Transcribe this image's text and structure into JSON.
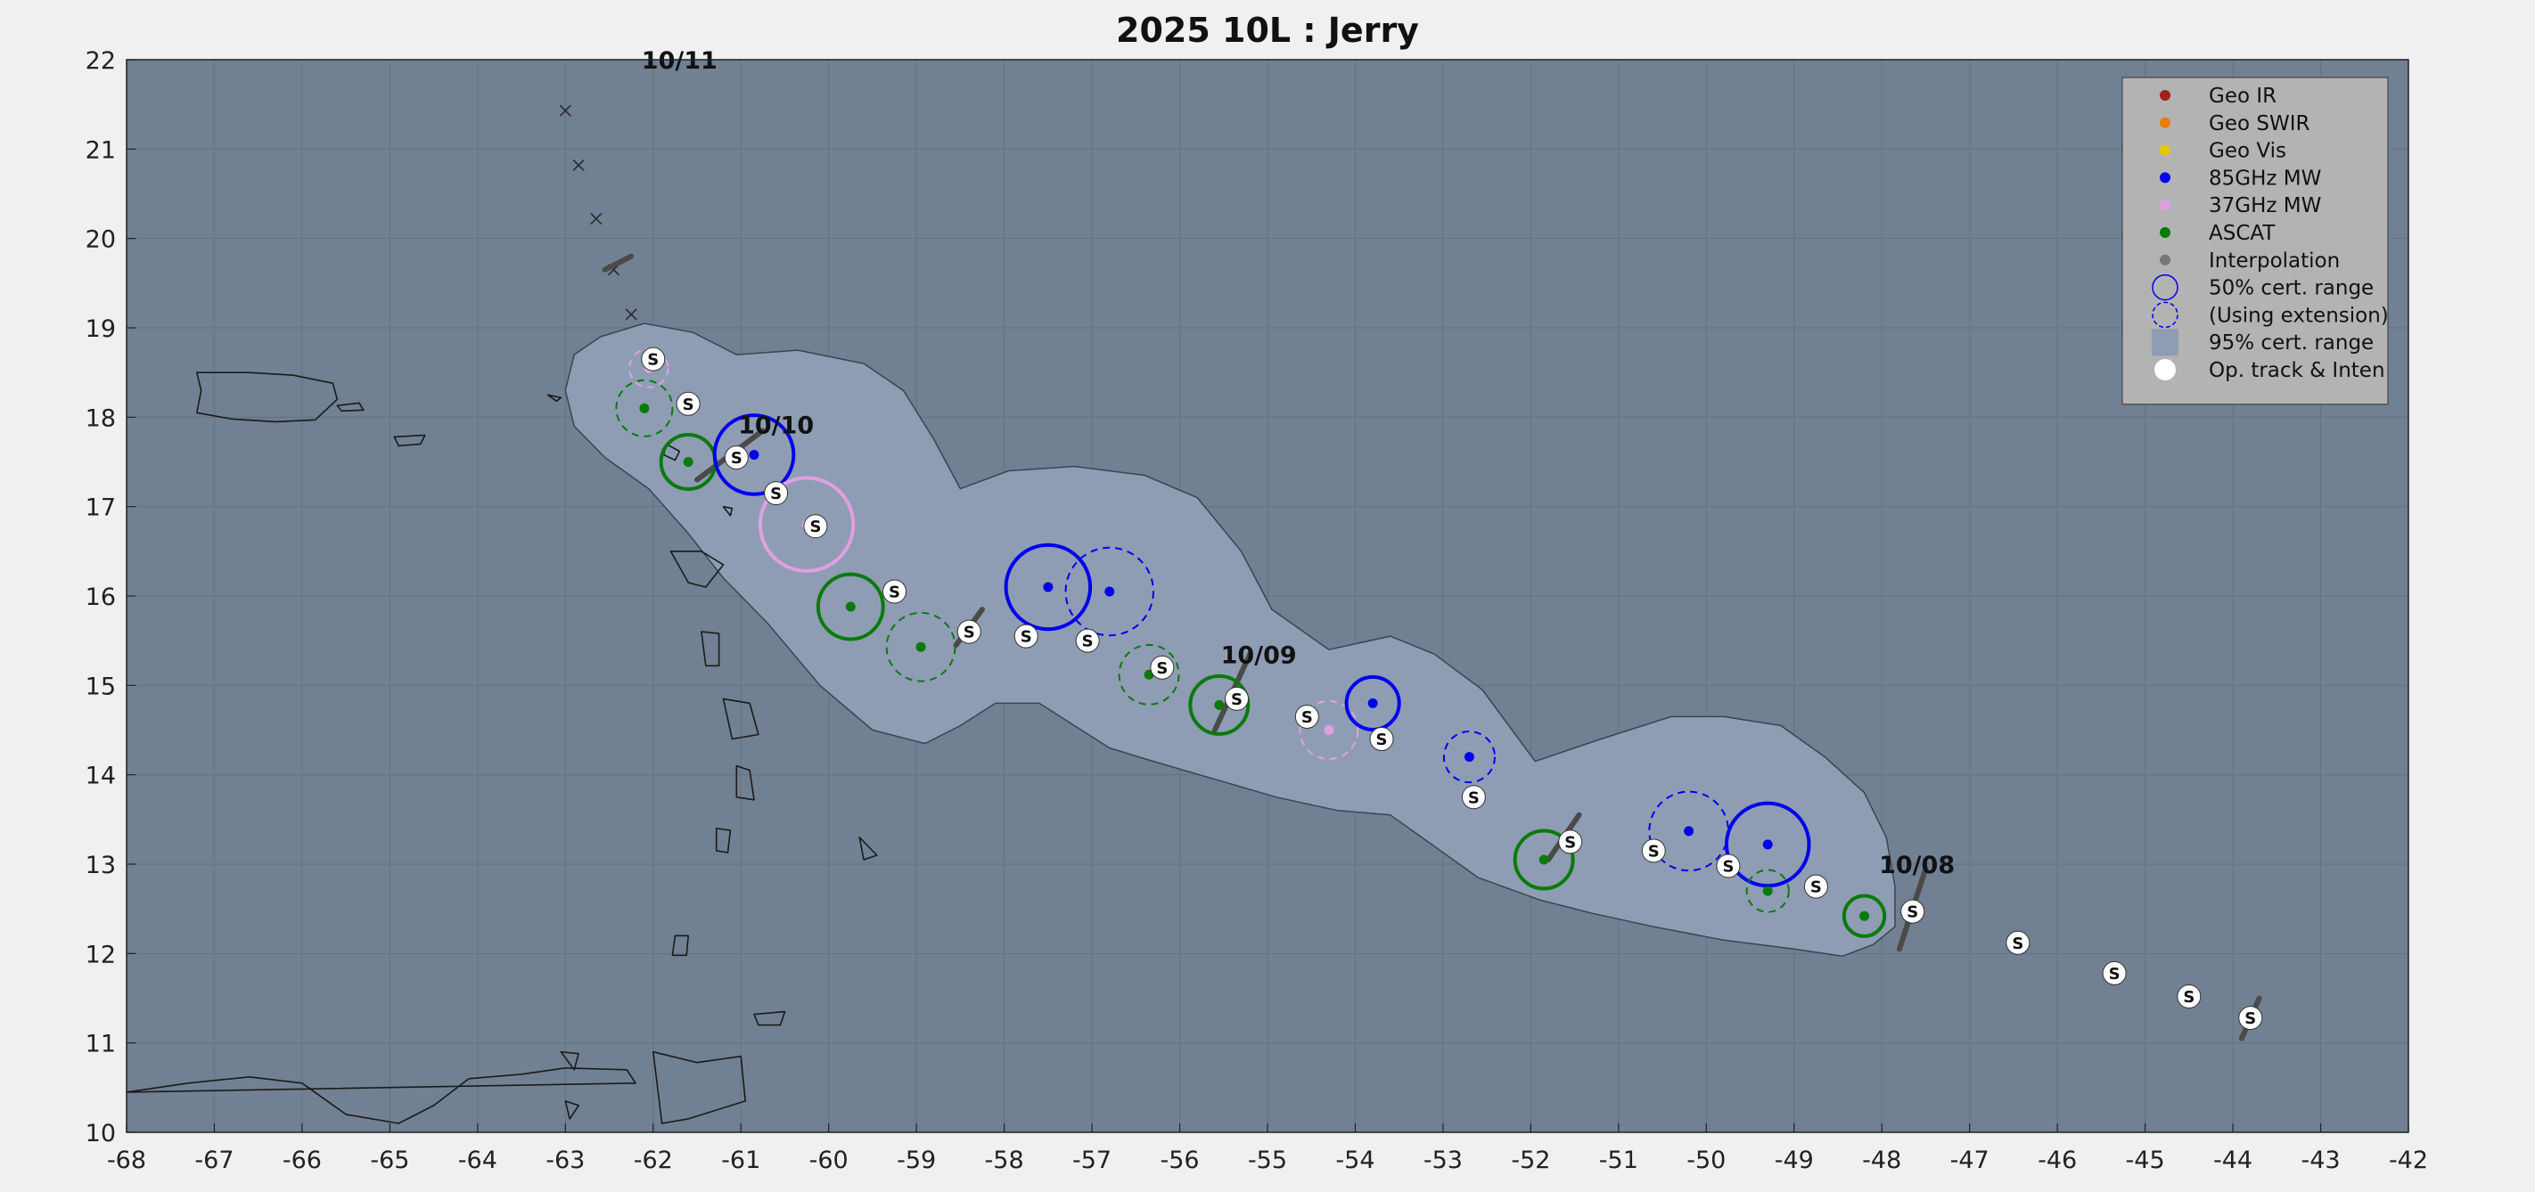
{
  "title": "2025  10L :  Jerry",
  "colors": {
    "background": "#f0f0f0",
    "ocean": "#718093",
    "cone": "#8e9db3",
    "geo_ir": "#a02020",
    "geo_swir": "#e67e00",
    "geo_vis": "#e6c800",
    "mw85": "#0000ee",
    "mw37": "#e0a0e0",
    "ascat": "#0a7a0a",
    "interp": "#777777",
    "legend_bg": "#b3b3b3"
  },
  "legend": [
    {
      "label": "Geo IR",
      "type": "dot",
      "color": "#a02020"
    },
    {
      "label": "Geo SWIR",
      "type": "dot",
      "color": "#e67e00"
    },
    {
      "label": "Geo Vis",
      "type": "dot",
      "color": "#e6c800"
    },
    {
      "label": "85GHz MW",
      "type": "dot",
      "color": "#0000ee"
    },
    {
      "label": "37GHz MW",
      "type": "dot",
      "color": "#e0a0e0"
    },
    {
      "label": "ASCAT",
      "type": "dot",
      "color": "#0a7a0a"
    },
    {
      "label": "Interpolation",
      "type": "dot",
      "color": "#777777"
    },
    {
      "label": "50% cert. range",
      "type": "circle-solid",
      "color": "#0000ee"
    },
    {
      "label": "(Using extension)",
      "type": "circle-dashed",
      "color": "#0000ee"
    },
    {
      "label": "95% cert. range",
      "type": "square",
      "color": "#8e9db3"
    },
    {
      "label": "Op. track & Inten",
      "type": "white-dot",
      "color": "#ffffff"
    }
  ],
  "chart_data": {
    "type": "scatter",
    "title": "2025  10L :  Jerry",
    "xlabel": "",
    "ylabel": "",
    "xlim": [
      -68,
      -42
    ],
    "ylim": [
      10,
      22
    ],
    "xticks": [
      -68,
      -67,
      -66,
      -65,
      -64,
      -63,
      -62,
      -61,
      -60,
      -59,
      -58,
      -57,
      -56,
      -55,
      -54,
      -53,
      -52,
      -51,
      -50,
      -49,
      -48,
      -47,
      -46,
      -45,
      -44,
      -43,
      -42
    ],
    "yticks": [
      10,
      11,
      12,
      13,
      14,
      15,
      16,
      17,
      18,
      19,
      20,
      21,
      22
    ],
    "grid": true,
    "legend_position": "top-right",
    "date_labels": [
      {
        "text": "10/11",
        "lon": -61.7,
        "lat": 21.9
      },
      {
        "text": "10/10",
        "lon": -60.6,
        "lat": 17.82
      },
      {
        "text": "10/09",
        "lon": -55.1,
        "lat": 15.25
      },
      {
        "text": "10/08",
        "lon": -47.6,
        "lat": 12.9
      }
    ],
    "forecast_marks": [
      {
        "lon": -63.0,
        "lat": 21.43
      },
      {
        "lon": -62.85,
        "lat": 20.82
      },
      {
        "lon": -62.65,
        "lat": 20.22
      },
      {
        "lon": -62.45,
        "lat": 19.65
      },
      {
        "lon": -62.25,
        "lat": 19.15
      }
    ],
    "op_track": [
      {
        "lon": -62.0,
        "lat": 18.65,
        "label": "S"
      },
      {
        "lon": -61.6,
        "lat": 18.15,
        "label": "S"
      },
      {
        "lon": -61.05,
        "lat": 17.55,
        "label": "S"
      },
      {
        "lon": -60.6,
        "lat": 17.15,
        "label": "S"
      },
      {
        "lon": -60.15,
        "lat": 16.78,
        "label": "S"
      },
      {
        "lon": -59.25,
        "lat": 16.05,
        "label": "S"
      },
      {
        "lon": -58.4,
        "lat": 15.6,
        "label": "S"
      },
      {
        "lon": -57.75,
        "lat": 15.55,
        "label": "S"
      },
      {
        "lon": -57.05,
        "lat": 15.5,
        "label": "S"
      },
      {
        "lon": -56.2,
        "lat": 15.2,
        "label": "S"
      },
      {
        "lon": -55.35,
        "lat": 14.85,
        "label": "S"
      },
      {
        "lon": -54.55,
        "lat": 14.65,
        "label": "S"
      },
      {
        "lon": -53.7,
        "lat": 14.4,
        "label": "S"
      },
      {
        "lon": -52.65,
        "lat": 13.75,
        "label": "S"
      },
      {
        "lon": -51.55,
        "lat": 13.25,
        "label": "S"
      },
      {
        "lon": -50.6,
        "lat": 13.15,
        "label": "S"
      },
      {
        "lon": -49.75,
        "lat": 12.98,
        "label": "S"
      },
      {
        "lon": -48.75,
        "lat": 12.75,
        "label": "S"
      },
      {
        "lon": -47.65,
        "lat": 12.47,
        "label": "S"
      },
      {
        "lon": -46.45,
        "lat": 12.12,
        "label": "S"
      },
      {
        "lon": -45.35,
        "lat": 11.78,
        "label": "S"
      },
      {
        "lon": -44.5,
        "lat": 11.52,
        "label": "S"
      },
      {
        "lon": -43.8,
        "lat": 11.28,
        "label": "S"
      }
    ],
    "motion_segments": [
      {
        "lon1": -61.5,
        "lat1": 17.3,
        "lon2": -60.75,
        "lat2": 17.85
      },
      {
        "lon1": -58.55,
        "lat1": 15.45,
        "lon2": -58.25,
        "lat2": 15.85
      },
      {
        "lon1": -55.6,
        "lat1": 14.5,
        "lon2": -55.2,
        "lat2": 15.35
      },
      {
        "lon1": -51.8,
        "lat1": 13.05,
        "lon2": -51.45,
        "lat2": 13.55
      },
      {
        "lon1": -47.8,
        "lat1": 12.05,
        "lon2": -47.5,
        "lat2": 12.95
      },
      {
        "lon1": -43.9,
        "lat1": 11.05,
        "lon2": -43.7,
        "lat2": 11.5
      },
      {
        "lon1": -62.55,
        "lat1": 19.65,
        "lon2": -62.25,
        "lat2": 19.8
      }
    ],
    "fixes": [
      {
        "sensor": "37GHz MW",
        "lon": -62.05,
        "lat": 18.55,
        "radius_deg": 0.22,
        "extension": true
      },
      {
        "sensor": "ASCAT",
        "lon": -62.1,
        "lat": 18.1,
        "radius_deg": 0.32,
        "extension": true
      },
      {
        "sensor": "ASCAT",
        "lon": -61.6,
        "lat": 17.5,
        "radius_deg": 0.31,
        "extension": false
      },
      {
        "sensor": "85GHz MW",
        "lon": -60.85,
        "lat": 17.58,
        "radius_deg": 0.45,
        "extension": false
      },
      {
        "sensor": "37GHz MW",
        "lon": -60.25,
        "lat": 16.8,
        "radius_deg": 0.53,
        "extension": false
      },
      {
        "sensor": "ASCAT",
        "lon": -59.75,
        "lat": 15.88,
        "radius_deg": 0.37,
        "extension": false
      },
      {
        "sensor": "ASCAT",
        "lon": -58.95,
        "lat": 15.43,
        "radius_deg": 0.39,
        "extension": true
      },
      {
        "sensor": "85GHz MW",
        "lon": -57.5,
        "lat": 16.1,
        "radius_deg": 0.48,
        "extension": false
      },
      {
        "sensor": "85GHz MW",
        "lon": -56.8,
        "lat": 16.05,
        "radius_deg": 0.5,
        "extension": true
      },
      {
        "sensor": "ASCAT",
        "lon": -56.35,
        "lat": 15.12,
        "radius_deg": 0.34,
        "extension": true
      },
      {
        "sensor": "ASCAT",
        "lon": -55.55,
        "lat": 14.78,
        "radius_deg": 0.33,
        "extension": false
      },
      {
        "sensor": "37GHz MW",
        "lon": -54.3,
        "lat": 14.5,
        "radius_deg": 0.33,
        "extension": true
      },
      {
        "sensor": "85GHz MW",
        "lon": -53.8,
        "lat": 14.8,
        "radius_deg": 0.3,
        "extension": false
      },
      {
        "sensor": "85GHz MW",
        "lon": -52.7,
        "lat": 14.2,
        "radius_deg": 0.29,
        "extension": true
      },
      {
        "sensor": "ASCAT",
        "lon": -51.85,
        "lat": 13.05,
        "radius_deg": 0.33,
        "extension": false
      },
      {
        "sensor": "85GHz MW",
        "lon": -50.2,
        "lat": 13.37,
        "radius_deg": 0.45,
        "extension": true
      },
      {
        "sensor": "85GHz MW",
        "lon": -49.3,
        "lat": 13.22,
        "radius_deg": 0.47,
        "extension": false
      },
      {
        "sensor": "ASCAT",
        "lon": -49.3,
        "lat": 12.7,
        "radius_deg": 0.24,
        "extension": true
      },
      {
        "sensor": "ASCAT",
        "lon": -48.2,
        "lat": 12.42,
        "radius_deg": 0.23,
        "extension": false
      }
    ],
    "cone_95_polygon": [
      [
        -62.6,
        18.9
      ],
      [
        -62.1,
        19.05
      ],
      [
        -61.55,
        18.95
      ],
      [
        -61.05,
        18.7
      ],
      [
        -60.35,
        18.75
      ],
      [
        -59.6,
        18.6
      ],
      [
        -59.15,
        18.3
      ],
      [
        -58.8,
        17.75
      ],
      [
        -58.5,
        17.2
      ],
      [
        -57.95,
        17.4
      ],
      [
        -57.2,
        17.45
      ],
      [
        -56.4,
        17.35
      ],
      [
        -55.8,
        17.1
      ],
      [
        -55.3,
        16.5
      ],
      [
        -54.95,
        15.85
      ],
      [
        -54.3,
        15.4
      ],
      [
        -53.6,
        15.55
      ],
      [
        -53.1,
        15.35
      ],
      [
        -52.55,
        14.95
      ],
      [
        -51.95,
        14.15
      ],
      [
        -51.2,
        14.4
      ],
      [
        -50.4,
        14.65
      ],
      [
        -49.8,
        14.65
      ],
      [
        -49.15,
        14.55
      ],
      [
        -48.65,
        14.2
      ],
      [
        -48.2,
        13.8
      ],
      [
        -47.95,
        13.3
      ],
      [
        -47.85,
        12.75
      ],
      [
        -47.85,
        12.3
      ],
      [
        -48.1,
        12.1
      ],
      [
        -48.45,
        11.97
      ],
      [
        -49.0,
        12.05
      ],
      [
        -49.8,
        12.15
      ],
      [
        -50.6,
        12.3
      ],
      [
        -51.3,
        12.45
      ],
      [
        -51.9,
        12.6
      ],
      [
        -52.6,
        12.85
      ],
      [
        -53.1,
        13.2
      ],
      [
        -53.6,
        13.55
      ],
      [
        -54.2,
        13.6
      ],
      [
        -54.9,
        13.75
      ],
      [
        -55.6,
        13.95
      ],
      [
        -56.3,
        14.15
      ],
      [
        -56.8,
        14.3
      ],
      [
        -57.2,
        14.55
      ],
      [
        -57.6,
        14.8
      ],
      [
        -58.1,
        14.8
      ],
      [
        -58.5,
        14.55
      ],
      [
        -58.9,
        14.35
      ],
      [
        -59.5,
        14.5
      ],
      [
        -60.1,
        15.0
      ],
      [
        -60.7,
        15.7
      ],
      [
        -61.2,
        16.2
      ],
      [
        -61.6,
        16.7
      ],
      [
        -62.05,
        17.2
      ],
      [
        -62.55,
        17.55
      ],
      [
        -62.9,
        17.9
      ],
      [
        -63.0,
        18.3
      ],
      [
        -62.9,
        18.7
      ]
    ],
    "coastlines": [
      [
        [
          -67.2,
          18.5
        ],
        [
          -66.6,
          18.5
        ],
        [
          -66.1,
          18.47
        ],
        [
          -65.65,
          18.38
        ],
        [
          -65.6,
          18.2
        ],
        [
          -65.85,
          17.97
        ],
        [
          -66.3,
          17.95
        ],
        [
          -66.8,
          17.98
        ],
        [
          -67.2,
          18.05
        ],
        [
          -67.15,
          18.3
        ]
      ],
      [
        [
          -65.6,
          18.13
        ],
        [
          -65.35,
          18.16
        ],
        [
          -65.3,
          18.08
        ],
        [
          -65.55,
          18.07
        ]
      ],
      [
        [
          -64.95,
          17.78
        ],
        [
          -64.6,
          17.8
        ],
        [
          -64.65,
          17.7
        ],
        [
          -64.9,
          17.68
        ]
      ],
      [
        [
          -63.2,
          18.25
        ],
        [
          -63.05,
          18.22
        ],
        [
          -63.1,
          18.18
        ]
      ],
      [
        [
          -61.85,
          17.7
        ],
        [
          -61.7,
          17.62
        ],
        [
          -61.75,
          17.52
        ],
        [
          -61.88,
          17.58
        ]
      ],
      [
        [
          -61.2,
          17.0
        ],
        [
          -61.1,
          16.98
        ],
        [
          -61.12,
          16.9
        ]
      ],
      [
        [
          -61.8,
          16.5
        ],
        [
          -61.45,
          16.5
        ],
        [
          -61.2,
          16.35
        ],
        [
          -61.4,
          16.1
        ],
        [
          -61.6,
          16.15
        ]
      ],
      [
        [
          -61.45,
          15.6
        ],
        [
          -61.25,
          15.58
        ],
        [
          -61.25,
          15.22
        ],
        [
          -61.4,
          15.22
        ]
      ],
      [
        [
          -61.2,
          14.85
        ],
        [
          -60.9,
          14.8
        ],
        [
          -60.8,
          14.45
        ],
        [
          -61.1,
          14.4
        ]
      ],
      [
        [
          -61.05,
          14.1
        ],
        [
          -60.9,
          14.05
        ],
        [
          -60.85,
          13.72
        ],
        [
          -61.05,
          13.75
        ]
      ],
      [
        [
          -61.28,
          13.4
        ],
        [
          -61.12,
          13.38
        ],
        [
          -61.15,
          13.13
        ],
        [
          -61.28,
          13.15
        ]
      ],
      [
        [
          -59.65,
          13.3
        ],
        [
          -59.45,
          13.1
        ],
        [
          -59.6,
          13.05
        ]
      ],
      [
        [
          -61.75,
          12.2
        ],
        [
          -61.6,
          12.2
        ],
        [
          -61.62,
          11.98
        ],
        [
          -61.78,
          11.98
        ]
      ],
      [
        [
          -60.85,
          11.32
        ],
        [
          -60.5,
          11.35
        ],
        [
          -60.55,
          11.2
        ],
        [
          -60.8,
          11.2
        ]
      ],
      [
        [
          -62.0,
          10.9
        ],
        [
          -61.5,
          10.78
        ],
        [
          -61.0,
          10.85
        ],
        [
          -60.95,
          10.35
        ],
        [
          -61.6,
          10.15
        ],
        [
          -61.9,
          10.1
        ]
      ],
      [
        [
          -68,
          10.45
        ],
        [
          -67.3,
          10.55
        ],
        [
          -66.6,
          10.62
        ],
        [
          -66.0,
          10.55
        ],
        [
          -65.5,
          10.2
        ],
        [
          -64.9,
          10.1
        ],
        [
          -64.5,
          10.3
        ],
        [
          -64.1,
          10.6
        ],
        [
          -63.5,
          10.65
        ],
        [
          -63.0,
          10.72
        ],
        [
          -62.3,
          10.7
        ],
        [
          -62.2,
          10.55
        ]
      ],
      [
        [
          -63.0,
          10.35
        ],
        [
          -62.85,
          10.3
        ],
        [
          -62.95,
          10.15
        ]
      ],
      [
        [
          -63.05,
          10.9
        ],
        [
          -62.85,
          10.88
        ],
        [
          -62.9,
          10.7
        ]
      ]
    ]
  }
}
